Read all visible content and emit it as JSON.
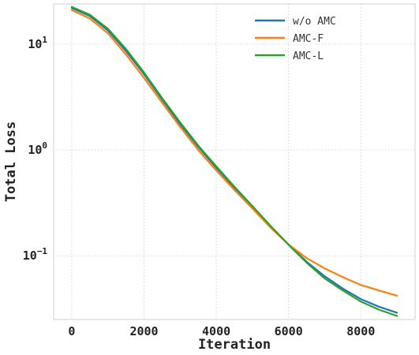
{
  "chart_data": {
    "type": "line",
    "title": "",
    "xlabel": "Iteration",
    "ylabel": "Total Loss",
    "xlim": [
      -500,
      9500
    ],
    "ylim": [
      0.025,
      24
    ],
    "yscale": "log",
    "grid": true,
    "legend_position": "top-right",
    "x_ticks": [
      {
        "value": 0,
        "label": "0"
      },
      {
        "value": 2000,
        "label": "2000"
      },
      {
        "value": 4000,
        "label": "4000"
      },
      {
        "value": 6000,
        "label": "6000"
      },
      {
        "value": 8000,
        "label": "8000"
      }
    ],
    "y_ticks": [
      {
        "value": 10,
        "base": "10",
        "exp": "1"
      },
      {
        "value": 1,
        "base": "10",
        "exp": "0"
      },
      {
        "value": 0.1,
        "base": "10",
        "exp": "−1"
      }
    ],
    "x": [
      0,
      500,
      1000,
      1500,
      2000,
      2500,
      3000,
      3500,
      4000,
      4500,
      5000,
      5500,
      6000,
      6500,
      7000,
      7500,
      8000,
      8500,
      9000
    ],
    "series": [
      {
        "name": "w/o AMC",
        "color": "#1f77b4",
        "values": [
          22,
          18.5,
          13.5,
          8.6,
          5.2,
          3.0,
          1.75,
          1.07,
          0.68,
          0.44,
          0.29,
          0.19,
          0.128,
          0.088,
          0.064,
          0.049,
          0.039,
          0.033,
          0.029
        ]
      },
      {
        "name": "AMC-F",
        "color": "#ff7f0e",
        "values": [
          21,
          17.5,
          12.7,
          8.0,
          4.8,
          2.8,
          1.65,
          1.0,
          0.64,
          0.42,
          0.28,
          0.185,
          0.128,
          0.095,
          0.076,
          0.063,
          0.053,
          0.047,
          0.042
        ]
      },
      {
        "name": "AMC-L",
        "color": "#2ca02c",
        "values": [
          22.5,
          19,
          14,
          9.0,
          5.4,
          3.1,
          1.82,
          1.1,
          0.7,
          0.45,
          0.295,
          0.192,
          0.127,
          0.086,
          0.061,
          0.047,
          0.037,
          0.031,
          0.027
        ]
      }
    ]
  }
}
